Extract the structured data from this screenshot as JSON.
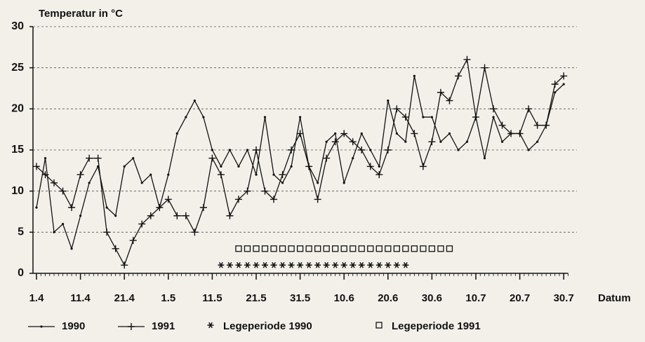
{
  "chart_data": {
    "type": "line",
    "title": "Temperatur in °C",
    "xlabel": "Datum",
    "x": [
      0,
      2,
      4,
      6,
      8,
      10,
      12,
      14,
      16,
      18,
      20,
      22,
      24,
      26,
      28,
      30,
      32,
      34,
      36,
      38,
      40,
      42,
      44,
      46,
      48,
      50,
      52,
      54,
      56,
      58,
      60,
      62,
      64,
      66,
      68,
      70,
      72,
      74,
      76,
      78,
      80,
      82,
      84,
      86,
      88,
      90,
      92,
      94,
      96,
      98,
      100,
      102,
      104,
      106,
      108,
      110,
      112,
      114,
      116,
      118,
      120
    ],
    "series": [
      {
        "name": "1990",
        "color": "#111111",
        "marker": "dot",
        "values": [
          8,
          14,
          5,
          6,
          3,
          7,
          11,
          13,
          8,
          7,
          13,
          14,
          11,
          12,
          8,
          12,
          17,
          19,
          21,
          19,
          15,
          13,
          15,
          13,
          15,
          12,
          19,
          12,
          11,
          13,
          19,
          13,
          11,
          16,
          17,
          11,
          14,
          17,
          15,
          13,
          21,
          17,
          16,
          24,
          19,
          19,
          16,
          17,
          15,
          16,
          19,
          14,
          19,
          16,
          17,
          17,
          15,
          16,
          18,
          22,
          23
        ]
      },
      {
        "name": "1991",
        "color": "#111111",
        "marker": "plus",
        "values": [
          13,
          12,
          11,
          10,
          8,
          12,
          14,
          14,
          5,
          3,
          1,
          4,
          6,
          7,
          8,
          9,
          7,
          7,
          5,
          8,
          14,
          12,
          7,
          9,
          10,
          15,
          10,
          9,
          12,
          15,
          17,
          13,
          9,
          14,
          16,
          17,
          16,
          15,
          13,
          12,
          15,
          20,
          19,
          17,
          13,
          16,
          22,
          21,
          24,
          26,
          19,
          25,
          20,
          18,
          17,
          17,
          20,
          18,
          18,
          23,
          24
        ]
      },
      {
        "name": "Legeperiode 1990",
        "color": "#111111",
        "marker": "star",
        "x": [
          42,
          44,
          46,
          48,
          50,
          52,
          54,
          56,
          58,
          60,
          62,
          64,
          66,
          68,
          70,
          72,
          74,
          76,
          78,
          80,
          82,
          84
        ],
        "values": [
          1,
          1,
          1,
          1,
          1,
          1,
          1,
          1,
          1,
          1,
          1,
          1,
          1,
          1,
          1,
          1,
          1,
          1,
          1,
          1,
          1,
          1
        ]
      },
      {
        "name": "Legeperiode 1991",
        "color": "#111111",
        "marker": "square",
        "x": [
          46,
          48,
          50,
          52,
          54,
          56,
          58,
          60,
          62,
          64,
          66,
          68,
          70,
          72,
          74,
          76,
          78,
          80,
          82,
          84,
          86,
          88,
          90,
          92,
          94
        ],
        "values": [
          3,
          3,
          3,
          3,
          3,
          3,
          3,
          3,
          3,
          3,
          3,
          3,
          3,
          3,
          3,
          3,
          3,
          3,
          3,
          3,
          3,
          3,
          3,
          3,
          3
        ]
      }
    ],
    "xlim": [
      0,
      121
    ],
    "xticks": [
      {
        "value": 0,
        "label": "1.4"
      },
      {
        "value": 10,
        "label": "11.4"
      },
      {
        "value": 20,
        "label": "21.4"
      },
      {
        "value": 30,
        "label": "1.5"
      },
      {
        "value": 40,
        "label": "11.5"
      },
      {
        "value": 50,
        "label": "21.5"
      },
      {
        "value": 60,
        "label": "31.5"
      },
      {
        "value": 70,
        "label": "10.6"
      },
      {
        "value": 80,
        "label": "20.6"
      },
      {
        "value": 90,
        "label": "30.6"
      },
      {
        "value": 100,
        "label": "10.7"
      },
      {
        "value": 110,
        "label": "20.7"
      },
      {
        "value": 120,
        "label": "30.7"
      }
    ],
    "ylim": [
      0,
      30
    ],
    "yticks": [
      0,
      5,
      10,
      15,
      20,
      25,
      30
    ],
    "grid": true
  }
}
